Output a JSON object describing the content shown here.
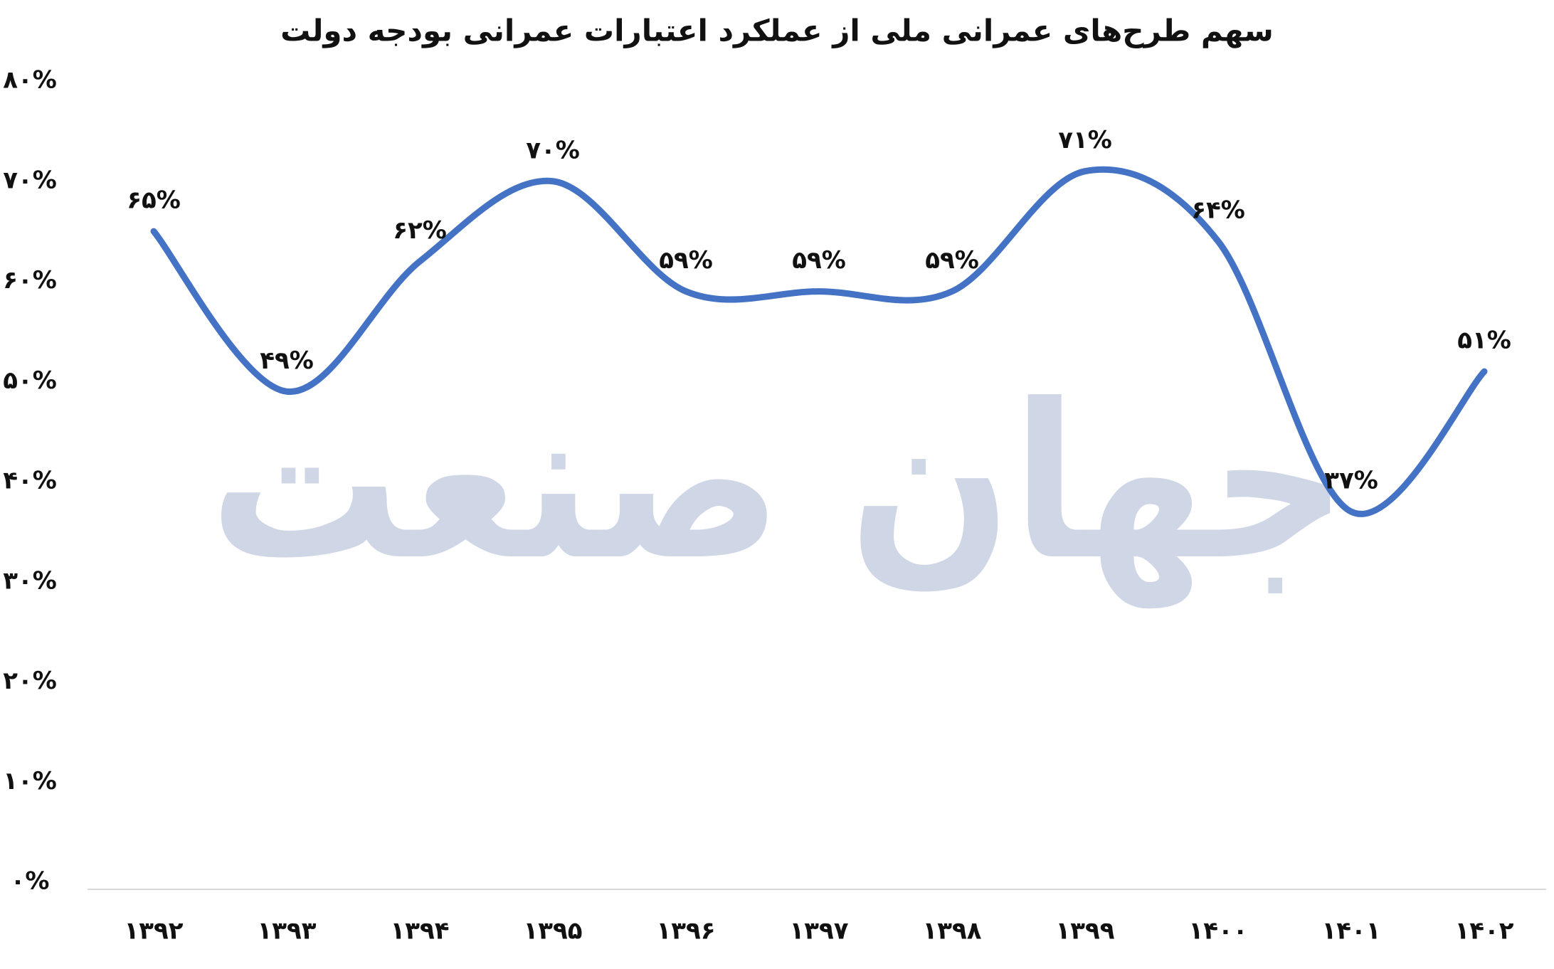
{
  "chart_data": {
    "type": "line",
    "title": "سهم طرح‌های عمرانی ملی از عملکرد اعتبارات عمرانی بودجه دولت",
    "watermark": "جهان صنعت",
    "categories": [
      "۱۳۹۲",
      "۱۳۹۳",
      "۱۳۹۴",
      "۱۳۹۵",
      "۱۳۹۶",
      "۱۳۹۷",
      "۱۳۹۸",
      "۱۳۹۹",
      "۱۴۰۰",
      "۱۴۰۱",
      "۱۴۰۲"
    ],
    "values": [
      65,
      49,
      62,
      70,
      59,
      59,
      59,
      71,
      64,
      37,
      51
    ],
    "value_labels": [
      "۶۵%",
      "۴۹%",
      "۶۲%",
      "۷۰%",
      "۵۹%",
      "۵۹%",
      "۵۹%",
      "۷۱%",
      "۶۴%",
      "۳۷%",
      "۵۱%"
    ],
    "color": "#4472c4",
    "ylim": [
      0,
      80
    ],
    "yticks": [
      {
        "value": 0,
        "label": "۰%"
      },
      {
        "value": 10,
        "label": "۱۰%"
      },
      {
        "value": 20,
        "label": "۲۰%"
      },
      {
        "value": 30,
        "label": "۳۰%"
      },
      {
        "value": 40,
        "label": "۴۰%"
      },
      {
        "value": 50,
        "label": "۵۰%"
      },
      {
        "value": 60,
        "label": "۶۰%"
      },
      {
        "value": 70,
        "label": "۷۰%"
      },
      {
        "value": 80,
        "label": "۸۰%"
      }
    ],
    "grid": false
  }
}
